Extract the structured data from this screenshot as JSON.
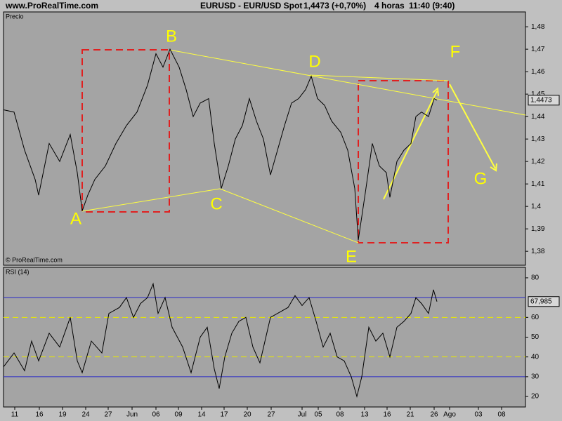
{
  "header": {
    "site": "www.ProRealTime.com",
    "symbol": "EURUSD - EUR/USD Spot",
    "quote": "1,4473 (+0,70%)",
    "period": "4 horas",
    "time": "11:40 (9:40)"
  },
  "chart_data": [
    {
      "type": "line",
      "copyright": "© ProRealTime.com",
      "x": [
        0,
        15,
        30,
        45,
        50,
        65,
        80,
        95,
        105,
        112,
        120,
        130,
        145,
        160,
        175,
        190,
        205,
        217,
        227,
        237,
        250,
        260,
        270,
        280,
        292,
        300,
        310,
        320,
        330,
        340,
        350,
        360,
        370,
        380,
        390,
        400,
        410,
        420,
        430,
        438,
        447,
        457,
        467,
        480,
        490,
        500,
        505,
        515,
        525,
        535,
        545,
        550,
        560,
        570,
        580,
        587,
        595,
        605,
        613,
        617
      ],
      "series": [
        {
          "name": "Precio",
          "color": "#000000",
          "values": [
            1.443,
            1.442,
            1.425,
            1.412,
            1.405,
            1.428,
            1.42,
            1.432,
            1.415,
            1.398,
            1.405,
            1.412,
            1.418,
            1.428,
            1.436,
            1.442,
            1.454,
            1.468,
            1.462,
            1.47,
            1.462,
            1.452,
            1.44,
            1.446,
            1.448,
            1.428,
            1.408,
            1.418,
            1.43,
            1.436,
            1.448,
            1.438,
            1.43,
            1.414,
            1.425,
            1.436,
            1.446,
            1.448,
            1.452,
            1.458,
            1.448,
            1.445,
            1.438,
            1.433,
            1.425,
            1.408,
            1.385,
            1.406,
            1.428,
            1.418,
            1.415,
            1.404,
            1.42,
            1.425,
            1.428,
            1.44,
            1.442,
            1.44,
            1.448,
            1.4473
          ],
          "last_label": "1,4473"
        }
      ],
      "xlim": [
        0,
        743
      ],
      "ylim": [
        1.3738,
        1.4866
      ],
      "yticks": [
        {
          "value": 1.48,
          "label": "1,48"
        },
        {
          "value": 1.47,
          "label": "1,47"
        },
        {
          "value": 1.46,
          "label": "1,46"
        },
        {
          "value": 1.45,
          "label": "1,45"
        },
        {
          "value": 1.44,
          "label": "1,44"
        },
        {
          "value": 1.43,
          "label": "1,43"
        },
        {
          "value": 1.42,
          "label": "1,42"
        },
        {
          "value": 1.41,
          "label": "1,41"
        },
        {
          "value": 1.4,
          "label": "1,4"
        },
        {
          "value": 1.39,
          "label": "1,39"
        },
        {
          "value": 1.38,
          "label": "1,38"
        }
      ],
      "annotations": [
        "A",
        "B",
        "C",
        "D",
        "E",
        "F",
        "G"
      ]
    },
    {
      "type": "line",
      "x": [
        0,
        15,
        30,
        40,
        50,
        65,
        80,
        95,
        105,
        112,
        125,
        140,
        150,
        165,
        175,
        185,
        195,
        205,
        213,
        220,
        230,
        240,
        255,
        267,
        280,
        290,
        300,
        307,
        315,
        325,
        335,
        345,
        355,
        365,
        380,
        390,
        405,
        415,
        425,
        435,
        445,
        455,
        465,
        475,
        485,
        495,
        503,
        510,
        520,
        530,
        540,
        550,
        560,
        570,
        580,
        587,
        595,
        605,
        612,
        617
      ],
      "series": [
        {
          "name": "RSI (14)",
          "color": "#000000",
          "values": [
            35,
            42,
            33,
            48,
            38,
            52,
            45,
            60,
            38,
            32,
            48,
            42,
            62,
            65,
            70,
            60,
            67,
            70,
            77,
            62,
            70,
            55,
            45,
            32,
            50,
            55,
            34,
            24,
            40,
            52,
            58,
            60,
            45,
            37,
            60,
            62,
            65,
            71,
            66,
            70,
            58,
            45,
            52,
            40,
            38,
            30,
            20,
            30,
            55,
            48,
            52,
            40,
            55,
            58,
            62,
            70,
            67,
            62,
            74,
            68
          ],
          "last_label": "67,985"
        }
      ],
      "xlim": [
        0,
        743
      ],
      "ylim": [
        14.7,
        85.3
      ],
      "yticks": [
        20,
        30,
        40,
        50,
        60,
        80
      ],
      "hlines": [
        {
          "value": 70,
          "color": "#2828c8"
        },
        {
          "value": 60,
          "color": "#e8e800"
        },
        {
          "value": 40,
          "color": "#e8e800"
        },
        {
          "value": 30,
          "color": "#2828c8"
        }
      ],
      "xticks": [
        {
          "value": 16,
          "label": "11"
        },
        {
          "value": 51,
          "label": "16"
        },
        {
          "value": 84,
          "label": "19"
        },
        {
          "value": 117,
          "label": "24"
        },
        {
          "value": 149,
          "label": "27"
        },
        {
          "value": 183,
          "label": "Jun"
        },
        {
          "value": 217,
          "label": "06"
        },
        {
          "value": 249,
          "label": "09"
        },
        {
          "value": 282,
          "label": "14"
        },
        {
          "value": 314,
          "label": "17"
        },
        {
          "value": 347,
          "label": "20"
        },
        {
          "value": 381,
          "label": "27"
        },
        {
          "value": 425,
          "label": "Jul"
        },
        {
          "value": 448,
          "label": "05"
        },
        {
          "value": 479,
          "label": "08"
        },
        {
          "value": 514,
          "label": "13"
        },
        {
          "value": 546,
          "label": "16"
        },
        {
          "value": 579,
          "label": "21"
        },
        {
          "value": 613,
          "label": "26"
        },
        {
          "value": 635,
          "label": "Ago"
        },
        {
          "value": 676,
          "label": "03"
        },
        {
          "value": 709,
          "label": "08"
        }
      ]
    }
  ]
}
